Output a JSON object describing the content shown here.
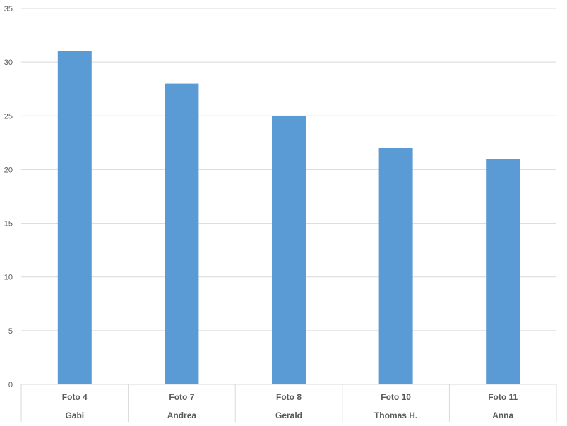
{
  "chart_data": {
    "type": "bar",
    "categories": [
      [
        "Foto 4",
        "Gabi"
      ],
      [
        "Foto 7",
        "Andrea"
      ],
      [
        "Foto 8",
        "Gerald"
      ],
      [
        "Foto 10",
        "Thomas H."
      ],
      [
        "Foto 11",
        "Anna"
      ]
    ],
    "values": [
      31,
      28,
      25,
      22,
      21
    ],
    "title": "",
    "xlabel": "",
    "ylabel": "",
    "ylim": [
      0,
      35
    ],
    "yticks": [
      "0",
      "5",
      "10",
      "15",
      "20",
      "25",
      "30",
      "35"
    ],
    "grid": true,
    "legend": "none",
    "bar_color": "#5B9BD5",
    "grid_color": "#D9D9D9",
    "text_color": "#595959"
  }
}
